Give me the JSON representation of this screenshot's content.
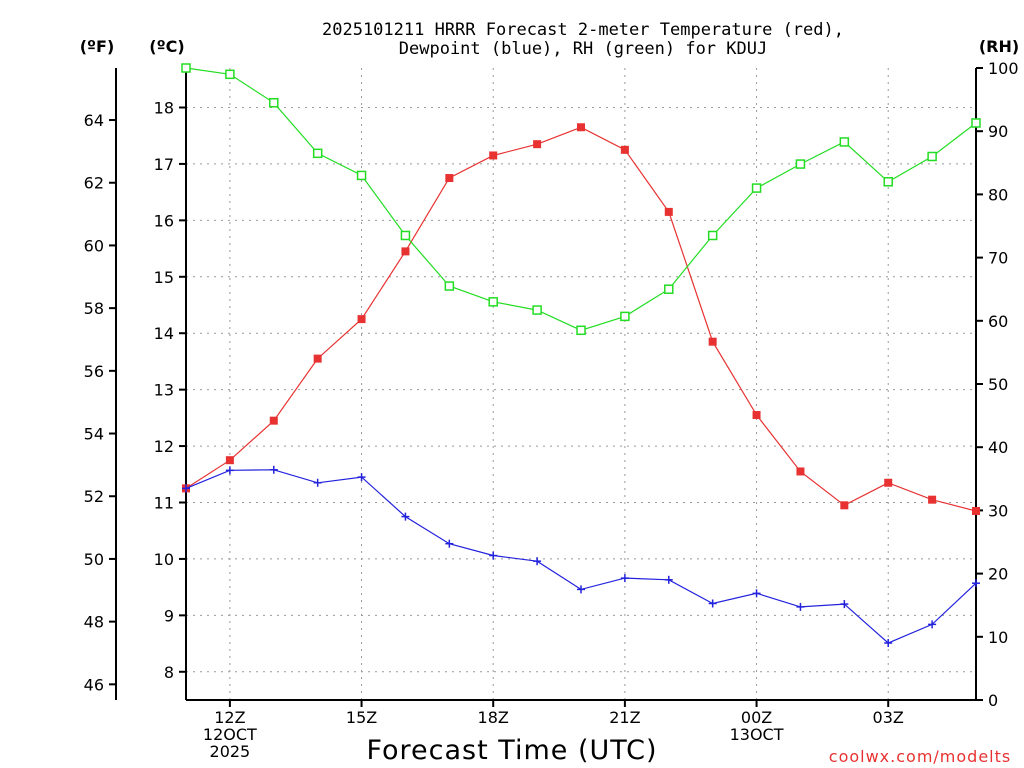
{
  "chart_data": {
    "type": "line",
    "title_lines": [
      "2025101211 HRRR Forecast 2-meter Temperature (red),",
      "Dewpoint (blue), RH (green) for KDUJ"
    ],
    "xlabel": "Forecast Time (UTC)",
    "credit": "coolwx.com/modelts",
    "units": {
      "fahrenheit": "(ºF)",
      "celsius": "(ºC)",
      "rh": "(RH)"
    },
    "x_hours": [
      11,
      12,
      13,
      14,
      15,
      16,
      17,
      18,
      19,
      20,
      21,
      22,
      23,
      24,
      25,
      26,
      27,
      28,
      29
    ],
    "xlim": [
      11,
      29
    ],
    "x_ticks": [
      {
        "hour": 12,
        "lines": [
          "12Z",
          "12OCT",
          "2025"
        ]
      },
      {
        "hour": 15,
        "lines": [
          "15Z"
        ]
      },
      {
        "hour": 18,
        "lines": [
          "18Z"
        ]
      },
      {
        "hour": 21,
        "lines": [
          "21Z"
        ]
      },
      {
        "hour": 24,
        "lines": [
          "00Z",
          "13OCT"
        ]
      },
      {
        "hour": 27,
        "lines": [
          "03Z"
        ]
      }
    ],
    "celsius_axis": {
      "ylim": [
        7.5,
        18.7
      ],
      "ticks": [
        8,
        9,
        10,
        11,
        12,
        13,
        14,
        15,
        16,
        17,
        18
      ]
    },
    "fahrenheit_ticks": [
      46,
      48,
      50,
      52,
      54,
      56,
      58,
      60,
      62,
      64
    ],
    "rh_axis": {
      "ylim": [
        0,
        100
      ],
      "ticks": [
        0,
        10,
        20,
        30,
        40,
        50,
        60,
        70,
        80,
        90,
        100
      ]
    },
    "series": [
      {
        "name": "2-meter Temperature",
        "color": "#e83232",
        "axis": "celsius",
        "marker": "filled-square",
        "values": [
          11.25,
          11.75,
          12.45,
          13.55,
          14.25,
          15.45,
          16.75,
          17.15,
          17.35,
          17.65,
          17.25,
          16.15,
          13.85,
          12.55,
          11.55,
          10.95,
          11.35,
          11.05,
          10.85
        ]
      },
      {
        "name": "Dewpoint",
        "color": "#2222dd",
        "axis": "celsius",
        "marker": "plus",
        "values": [
          11.25,
          11.57,
          11.58,
          11.35,
          11.45,
          10.75,
          10.27,
          10.06,
          9.96,
          9.46,
          9.66,
          9.63,
          9.21,
          9.39,
          9.15,
          9.2,
          8.51,
          8.84,
          9.57
        ]
      },
      {
        "name": "RH",
        "color": "#22dd22",
        "axis": "rh",
        "marker": "open-square",
        "values": [
          100,
          99,
          94.5,
          86.5,
          83,
          73.5,
          65.5,
          63,
          61.7,
          58.5,
          60.7,
          65,
          73.5,
          81,
          84.8,
          88.3,
          82,
          86,
          91.3
        ]
      }
    ],
    "grid": true
  }
}
